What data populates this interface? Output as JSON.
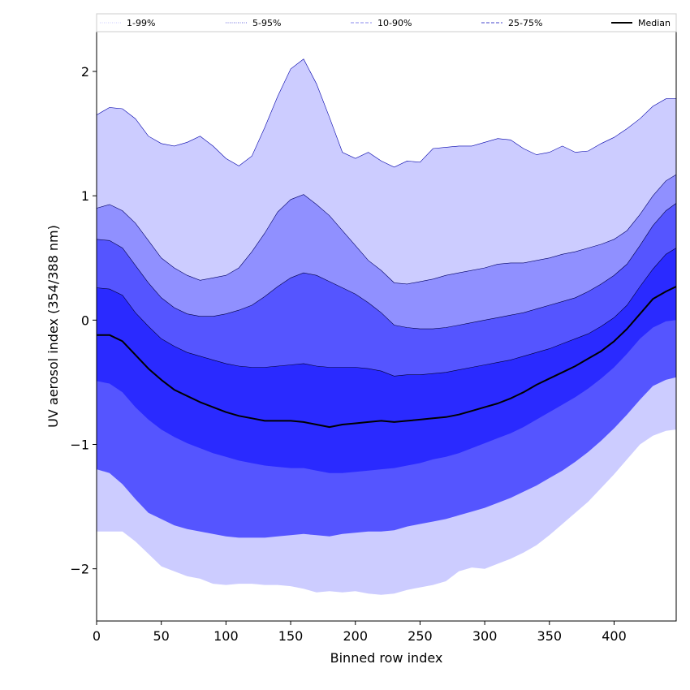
{
  "chart_data": {
    "type": "area",
    "title": "",
    "xlabel": "Binned row index",
    "ylabel": "UV aerosol index (354/388 nm)",
    "xlim": [
      0,
      448
    ],
    "ylim": [
      -2.42,
      2.32
    ],
    "xticks": [
      0,
      50,
      100,
      150,
      200,
      250,
      300,
      350,
      400
    ],
    "yticks": [
      -2,
      -1,
      0,
      1,
      2
    ],
    "ytick_labels": [
      "−2",
      "−1",
      "0",
      "1",
      "2"
    ],
    "grid": false,
    "legend_position": "top",
    "legend": [
      {
        "label": "1-99%",
        "style": "dotted",
        "color": "#ccccff"
      },
      {
        "label": "5-95%",
        "style": "dotted",
        "color": "#6666dd"
      },
      {
        "label": "10-90%",
        "style": "dashed",
        "color": "#8888ee"
      },
      {
        "label": "25-75%",
        "style": "dashed",
        "color": "#4444cc"
      },
      {
        "label": "Median",
        "style": "solid",
        "color": "#000000"
      }
    ],
    "x": [
      0,
      10,
      20,
      30,
      40,
      50,
      60,
      70,
      80,
      90,
      100,
      110,
      120,
      130,
      140,
      150,
      160,
      170,
      180,
      190,
      200,
      210,
      220,
      230,
      240,
      250,
      260,
      270,
      280,
      290,
      300,
      310,
      320,
      330,
      340,
      350,
      360,
      370,
      380,
      390,
      400,
      410,
      420,
      430,
      440,
      448
    ],
    "bands": [
      {
        "name": "1-99%",
        "color": "#ccccff",
        "outline": "#0000aa",
        "upper": [
          1.65,
          1.71,
          1.7,
          1.62,
          1.48,
          1.42,
          1.4,
          1.43,
          1.48,
          1.4,
          1.3,
          1.24,
          1.32,
          1.55,
          1.8,
          2.02,
          2.1,
          1.9,
          1.63,
          1.35,
          1.3,
          1.35,
          1.28,
          1.23,
          1.28,
          1.27,
          1.38,
          1.39,
          1.4,
          1.4,
          1.43,
          1.46,
          1.45,
          1.38,
          1.33,
          1.35,
          1.4,
          1.35,
          1.36,
          1.42,
          1.47,
          1.54,
          1.62,
          1.72,
          1.78,
          1.78
        ],
        "lower": [
          -1.7,
          -1.7,
          -1.7,
          -1.78,
          -1.88,
          -1.98,
          -2.02,
          -2.06,
          -2.08,
          -2.12,
          -2.13,
          -2.12,
          -2.12,
          -2.13,
          -2.13,
          -2.14,
          -2.16,
          -2.19,
          -2.18,
          -2.19,
          -2.18,
          -2.2,
          -2.21,
          -2.2,
          -2.17,
          -2.15,
          -2.13,
          -2.1,
          -2.02,
          -1.99,
          -2.0,
          -1.96,
          -1.92,
          -1.87,
          -1.81,
          -1.73,
          -1.64,
          -1.55,
          -1.46,
          -1.35,
          -1.24,
          -1.12,
          -1.0,
          -0.93,
          -0.89,
          -0.88
        ]
      },
      {
        "name": "5-95%",
        "color": "#9090ff",
        "outline": "#000066",
        "upper": [
          0.9,
          0.93,
          0.88,
          0.78,
          0.64,
          0.5,
          0.42,
          0.36,
          0.32,
          0.34,
          0.36,
          0.42,
          0.55,
          0.7,
          0.87,
          0.97,
          1.01,
          0.93,
          0.84,
          0.72,
          0.6,
          0.48,
          0.4,
          0.3,
          0.29,
          0.31,
          0.33,
          0.36,
          0.38,
          0.4,
          0.42,
          0.45,
          0.46,
          0.46,
          0.48,
          0.5,
          0.53,
          0.55,
          0.58,
          0.61,
          0.65,
          0.72,
          0.85,
          1.0,
          1.12,
          1.17
        ],
        "lower": [
          -0.98,
          -1.0,
          -1.05,
          -1.15,
          -1.27,
          -1.36,
          -1.42,
          -1.46,
          -1.49,
          -1.52,
          -1.54,
          -1.55,
          -1.55,
          -1.55,
          -1.54,
          -1.53,
          -1.53,
          -1.55,
          -1.54,
          -1.52,
          -1.51,
          -1.5,
          -1.5,
          -1.49,
          -1.46,
          -1.44,
          -1.42,
          -1.39,
          -1.35,
          -1.32,
          -1.28,
          -1.24,
          -1.19,
          -1.14,
          -1.09,
          -1.03,
          -0.97,
          -0.9,
          -0.82,
          -0.73,
          -0.64,
          -0.54,
          -0.45,
          -0.35,
          -0.28,
          -0.26
        ]
      },
      {
        "name": "10-90%",
        "color": "#5555ff",
        "outline": "#000044",
        "upper": [
          0.65,
          0.64,
          0.58,
          0.44,
          0.3,
          0.18,
          0.1,
          0.05,
          0.03,
          0.03,
          0.05,
          0.08,
          0.12,
          0.19,
          0.27,
          0.34,
          0.38,
          0.36,
          0.31,
          0.26,
          0.21,
          0.14,
          0.06,
          -0.04,
          -0.06,
          -0.07,
          -0.07,
          -0.06,
          -0.04,
          -0.02,
          0.0,
          0.02,
          0.04,
          0.06,
          0.09,
          0.12,
          0.15,
          0.18,
          0.23,
          0.29,
          0.36,
          0.45,
          0.6,
          0.76,
          0.88,
          0.94
        ],
        "lower": [
          -1.2,
          -1.23,
          -1.32,
          -1.44,
          -1.55,
          -1.6,
          -1.65,
          -1.68,
          -1.7,
          -1.72,
          -1.74,
          -1.75,
          -1.75,
          -1.75,
          -1.74,
          -1.73,
          -1.72,
          -1.73,
          -1.74,
          -1.72,
          -1.71,
          -1.7,
          -1.7,
          -1.69,
          -1.66,
          -1.64,
          -1.62,
          -1.6,
          -1.57,
          -1.54,
          -1.51,
          -1.47,
          -1.43,
          -1.38,
          -1.33,
          -1.27,
          -1.21,
          -1.14,
          -1.06,
          -0.97,
          -0.87,
          -0.76,
          -0.64,
          -0.53,
          -0.48,
          -0.46
        ]
      },
      {
        "name": "25-75%",
        "color": "#2a2aff",
        "outline": "#000033",
        "upper": [
          0.26,
          0.25,
          0.2,
          0.06,
          -0.05,
          -0.15,
          -0.21,
          -0.26,
          -0.29,
          -0.32,
          -0.35,
          -0.37,
          -0.38,
          -0.38,
          -0.37,
          -0.36,
          -0.35,
          -0.37,
          -0.38,
          -0.38,
          -0.38,
          -0.39,
          -0.41,
          -0.45,
          -0.44,
          -0.44,
          -0.43,
          -0.42,
          -0.4,
          -0.38,
          -0.36,
          -0.34,
          -0.32,
          -0.29,
          -0.26,
          -0.23,
          -0.19,
          -0.15,
          -0.11,
          -0.05,
          0.02,
          0.12,
          0.27,
          0.41,
          0.53,
          0.58
        ],
        "lower": [
          -0.49,
          -0.51,
          -0.58,
          -0.7,
          -0.8,
          -0.88,
          -0.94,
          -0.99,
          -1.03,
          -1.07,
          -1.1,
          -1.13,
          -1.15,
          -1.17,
          -1.18,
          -1.19,
          -1.19,
          -1.21,
          -1.23,
          -1.23,
          -1.22,
          -1.21,
          -1.2,
          -1.19,
          -1.17,
          -1.15,
          -1.12,
          -1.1,
          -1.07,
          -1.03,
          -0.99,
          -0.95,
          -0.91,
          -0.86,
          -0.8,
          -0.74,
          -0.68,
          -0.62,
          -0.55,
          -0.47,
          -0.38,
          -0.27,
          -0.15,
          -0.06,
          -0.01,
          0.0
        ]
      }
    ],
    "series": [
      {
        "name": "Median",
        "color": "#000000",
        "values": [
          -0.12,
          -0.12,
          -0.17,
          -0.28,
          -0.39,
          -0.48,
          -0.56,
          -0.61,
          -0.66,
          -0.7,
          -0.74,
          -0.77,
          -0.79,
          -0.81,
          -0.81,
          -0.81,
          -0.82,
          -0.84,
          -0.86,
          -0.84,
          -0.83,
          -0.82,
          -0.81,
          -0.82,
          -0.81,
          -0.8,
          -0.79,
          -0.78,
          -0.76,
          -0.73,
          -0.7,
          -0.67,
          -0.63,
          -0.58,
          -0.52,
          -0.47,
          -0.42,
          -0.37,
          -0.31,
          -0.25,
          -0.17,
          -0.07,
          0.05,
          0.17,
          0.23,
          0.27
        ]
      }
    ]
  }
}
